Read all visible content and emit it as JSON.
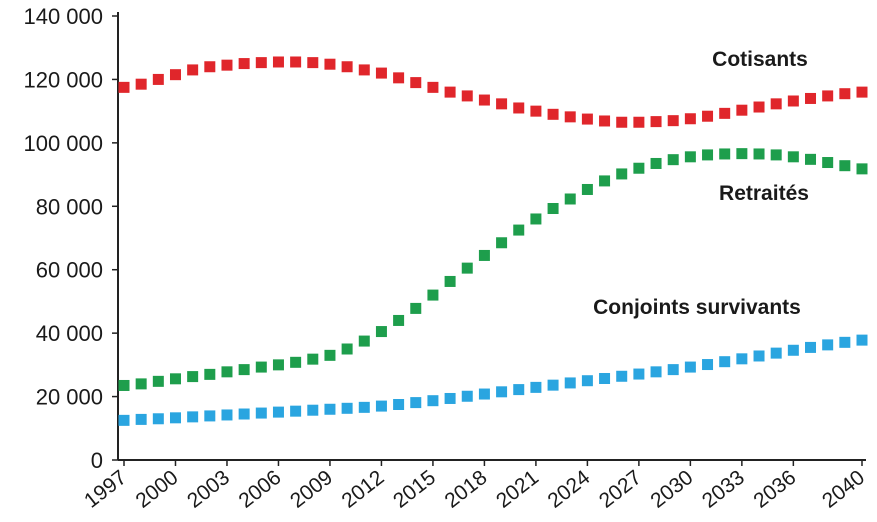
{
  "chart_data": {
    "type": "scatter",
    "title": "",
    "xlabel": "",
    "ylabel": "",
    "ylim": [
      0,
      140000
    ],
    "xlim": [
      1997,
      2040
    ],
    "grid": false,
    "y_ticks": [
      0,
      20000,
      40000,
      60000,
      80000,
      100000,
      120000,
      140000
    ],
    "y_tick_labels": [
      "0",
      "20 000",
      "40 000",
      "60 000",
      "80 000",
      "100 000",
      "120 000",
      "140 000"
    ],
    "x_ticks": [
      1997,
      2000,
      2003,
      2006,
      2009,
      2012,
      2015,
      2018,
      2021,
      2024,
      2027,
      2030,
      2033,
      2036,
      2040
    ],
    "x_tick_labels": [
      "1997",
      "2000",
      "2003",
      "2006",
      "2009",
      "2012",
      "2015",
      "2018",
      "2021",
      "2024",
      "2027",
      "2030",
      "2033",
      "2036",
      "2040"
    ],
    "x": [
      1997,
      1998,
      1999,
      2000,
      2001,
      2002,
      2003,
      2004,
      2005,
      2006,
      2007,
      2008,
      2009,
      2010,
      2011,
      2012,
      2013,
      2014,
      2015,
      2016,
      2017,
      2018,
      2019,
      2020,
      2021,
      2022,
      2023,
      2024,
      2025,
      2026,
      2027,
      2028,
      2029,
      2030,
      2031,
      2032,
      2033,
      2034,
      2035,
      2036,
      2037,
      2038,
      2039,
      2040
    ],
    "series": [
      {
        "name": "Cotisants",
        "color": "#e0262b",
        "values": [
          117500,
          118500,
          120000,
          121500,
          123000,
          124000,
          124500,
          125000,
          125300,
          125500,
          125500,
          125300,
          124800,
          124000,
          123000,
          122000,
          120500,
          119000,
          117500,
          116000,
          114800,
          113500,
          112300,
          111000,
          110000,
          109000,
          108200,
          107500,
          106900,
          106500,
          106500,
          106700,
          107000,
          107600,
          108400,
          109300,
          110300,
          111300,
          112300,
          113200,
          114000,
          114800,
          115500,
          116000
        ]
      },
      {
        "name": "Retraités",
        "color": "#1e9e4c",
        "values": [
          23500,
          24000,
          24800,
          25600,
          26300,
          27000,
          27800,
          28500,
          29300,
          30000,
          30800,
          31800,
          33000,
          35000,
          37500,
          40500,
          44000,
          47800,
          52000,
          56300,
          60500,
          64500,
          68500,
          72500,
          76000,
          79300,
          82300,
          85300,
          88000,
          90200,
          92000,
          93500,
          94700,
          95600,
          96200,
          96500,
          96600,
          96500,
          96200,
          95600,
          94800,
          93800,
          92800,
          91800
        ]
      },
      {
        "name": "Conjoints survivants",
        "color": "#2aa5e0",
        "values": [
          12500,
          12800,
          13000,
          13300,
          13600,
          13900,
          14200,
          14500,
          14800,
          15100,
          15400,
          15700,
          16000,
          16300,
          16600,
          17000,
          17500,
          18100,
          18700,
          19400,
          20100,
          20800,
          21500,
          22200,
          22900,
          23600,
          24300,
          25000,
          25700,
          26400,
          27100,
          27800,
          28500,
          29300,
          30100,
          31000,
          31900,
          32800,
          33700,
          34600,
          35500,
          36300,
          37100,
          37800
        ]
      }
    ]
  }
}
